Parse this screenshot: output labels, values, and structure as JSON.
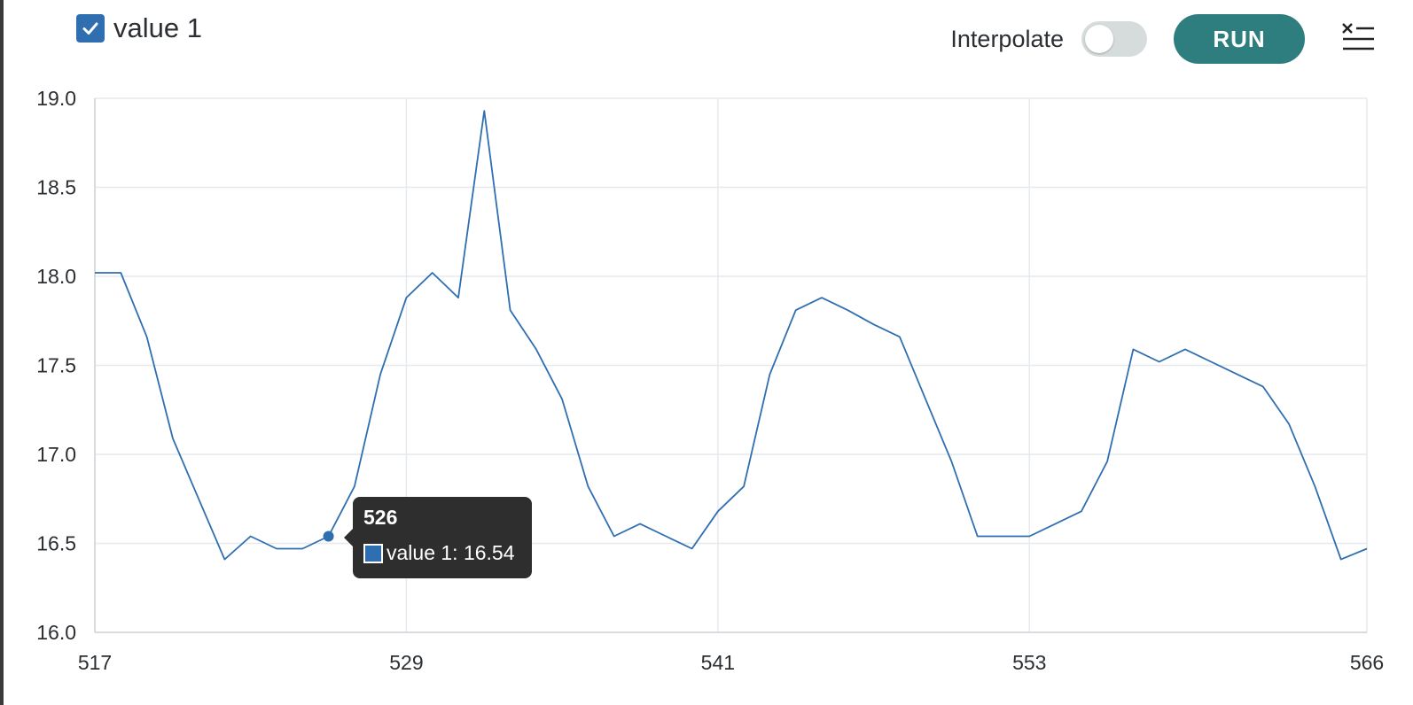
{
  "legend": {
    "label": "value 1",
    "checked": true
  },
  "toolbar": {
    "interpolate_label": "Interpolate",
    "interpolate_on": false,
    "run_label": "RUN"
  },
  "icons": {
    "checkbox": "check-icon",
    "clear": "clear-list-icon"
  },
  "colors": {
    "line": "#2f6fb0",
    "run_button": "#2e7e80",
    "tooltip_bg": "#2e2e2e",
    "grid": "#e6eaee"
  },
  "tooltip": {
    "title": "526",
    "text": "value 1: 16.54"
  },
  "chart_data": {
    "type": "line",
    "title": "",
    "xlabel": "",
    "ylabel": "",
    "xlim": [
      517,
      566
    ],
    "ylim": [
      16.0,
      19.0
    ],
    "x_ticks": [
      "517",
      "529",
      "541",
      "553",
      "566"
    ],
    "y_ticks": [
      "19.0",
      "18.5",
      "18.0",
      "17.5",
      "17.0",
      "16.5",
      "16.0"
    ],
    "grid": true,
    "highlight": {
      "x": 526,
      "y": 16.54
    },
    "series": [
      {
        "name": "value 1",
        "x": [
          517,
          518,
          519,
          520,
          521,
          522,
          523,
          524,
          525,
          526,
          527,
          528,
          529,
          530,
          531,
          532,
          533,
          534,
          535,
          536,
          537,
          538,
          539,
          540,
          541,
          542,
          543,
          544,
          545,
          546,
          547,
          548,
          549,
          550,
          551,
          552,
          553,
          554,
          555,
          556,
          557,
          558,
          559,
          560,
          561,
          562,
          563,
          564,
          565,
          566
        ],
        "values": [
          18.02,
          18.02,
          17.66,
          17.09,
          16.75,
          16.41,
          16.54,
          16.47,
          16.47,
          16.54,
          16.82,
          17.45,
          17.88,
          18.02,
          17.88,
          18.93,
          17.81,
          17.59,
          17.31,
          16.82,
          16.54,
          16.61,
          16.54,
          16.47,
          16.68,
          16.82,
          17.45,
          17.81,
          17.88,
          17.81,
          17.73,
          17.66,
          17.31,
          16.96,
          16.54,
          16.54,
          16.54,
          16.61,
          16.68,
          16.96,
          17.59,
          17.52,
          17.59,
          17.52,
          17.45,
          17.38,
          17.17,
          16.82,
          16.41,
          16.47
        ]
      }
    ]
  }
}
